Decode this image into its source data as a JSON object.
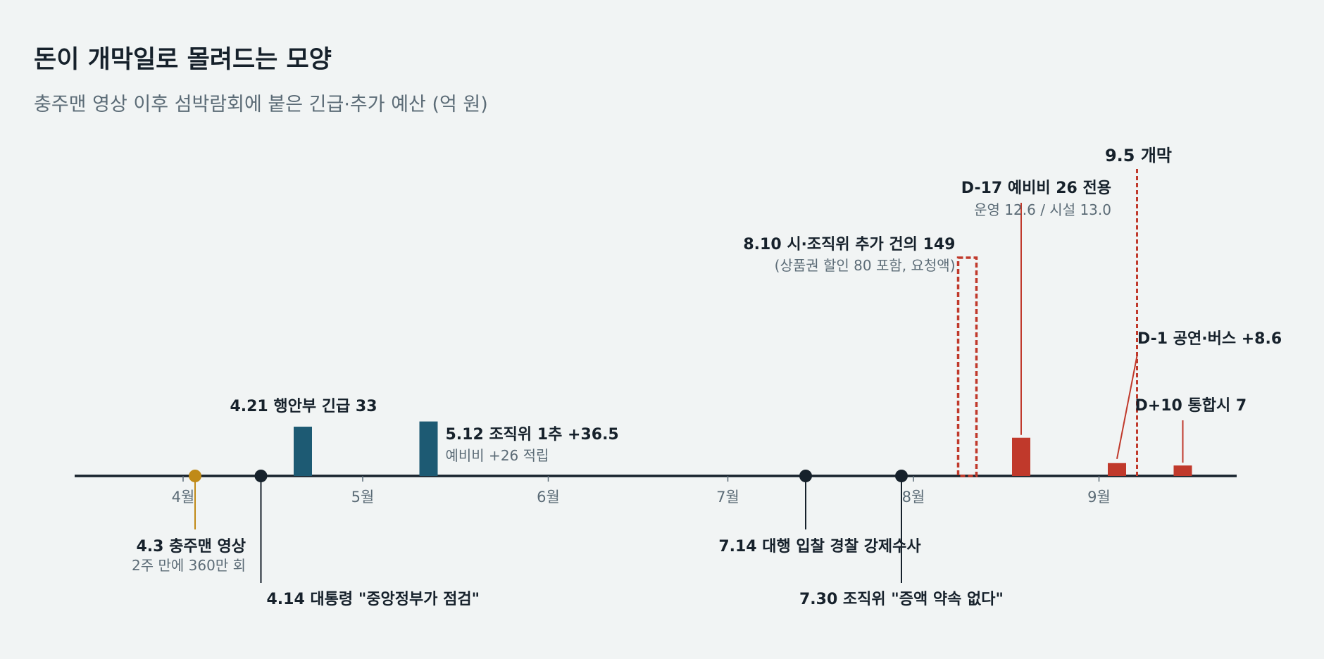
{
  "header": {
    "title": "돈이 개막일로 몰려드는 모양",
    "subtitle": "충주맨 영상 이후 섬박람회에 붙은 긴급·추가 예산 (억 원)"
  },
  "colors": {
    "background": "#f1f4f4",
    "axis": "#16212b",
    "early_bar": "#1d5a73",
    "late_bar": "#c0392b",
    "event_dot": "#16212b",
    "video_dot": "#c08a17"
  },
  "chart_data": {
    "type": "bar",
    "title": "돈이 개막일로 몰려드는 모양",
    "subtitle": "충주맨 영상 이후 섬박람회에 붙은 긴급·추가 예산 (억 원)",
    "x_axis": {
      "type": "date",
      "range": [
        "2025-03-27",
        "2025-09-30"
      ],
      "ticks": [
        {
          "date": "2025-04-01",
          "label": "4월"
        },
        {
          "date": "2025-05-01",
          "label": "5월"
        },
        {
          "date": "2025-06-01",
          "label": "6월"
        },
        {
          "date": "2025-07-01",
          "label": "7월"
        },
        {
          "date": "2025-08-01",
          "label": "8월"
        },
        {
          "date": "2025-09-01",
          "label": "9월"
        }
      ]
    },
    "bars": [
      {
        "id": "b1",
        "date": "2025-04-21",
        "value": 33,
        "color": "#1d5a73",
        "label": "4.21 행안부 긴급 33",
        "sublabel": ""
      },
      {
        "id": "b2",
        "date": "2025-05-12",
        "value": 36.5,
        "color": "#1d5a73",
        "label": "5.12 조직위 1추 +36.5",
        "sublabel": "예비비 +26 적립"
      },
      {
        "id": "b3",
        "date": "2025-08-19",
        "value": 25.6,
        "color": "#c0392b",
        "label": "D-17 예비비 26 전용",
        "sublabel": "운영 12.6 / 시설 13.0"
      },
      {
        "id": "b4",
        "date": "2025-09-04",
        "value": 8.6,
        "color": "#c0392b",
        "label": "D-1 공연·버스 +8.6",
        "sublabel": ""
      },
      {
        "id": "b5",
        "date": "2025-09-15",
        "value": 7,
        "color": "#c0392b",
        "label": "D+10 통합시 7",
        "sublabel": ""
      }
    ],
    "requested": {
      "date": "2025-08-10",
      "value": 149,
      "style": "dashed-outline",
      "label": "8.10 시·조직위 추가 건의 149",
      "sublabel": "(상품권 할인 80 포함, 요청액)"
    },
    "opening": {
      "date": "2025-09-05",
      "label": "9.5 개막"
    },
    "events": [
      {
        "id": "e1",
        "date": "2025-04-03",
        "label": "4.3 충주맨 영상",
        "sublabel": "2주 만에 360만 회"
      },
      {
        "id": "e2",
        "date": "2025-04-14",
        "label": "4.14 대통령 \"중앙정부가 점검\"",
        "sublabel": ""
      },
      {
        "id": "e3",
        "date": "2025-07-14",
        "label": "7.14 대행 입찰 경찰 강제수사",
        "sublabel": ""
      },
      {
        "id": "e4",
        "date": "2025-07-30",
        "label": "7.30 조직위 \"증액 약속 없다\"",
        "sublabel": ""
      }
    ]
  }
}
